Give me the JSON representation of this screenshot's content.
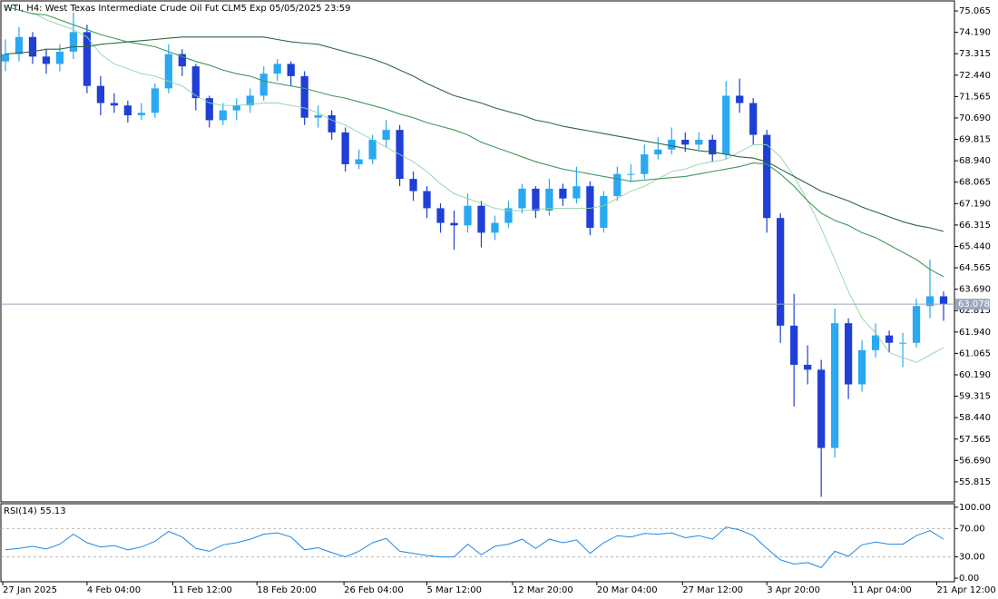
{
  "chart_data": [
    {
      "type": "candlestick",
      "title": "WTI, H4:  West Texas Intermediate Crude Oil Fut CLM5 Exp 05/05/2025 23:59",
      "current_price": 63.078,
      "up_color": "#2aa8f2",
      "down_color": "#1f3fd6",
      "price_line_color": "#9aa8be",
      "open": [
        73.0,
        73.3,
        74.0,
        73.2,
        72.9,
        73.4,
        74.2,
        72.0,
        71.3,
        71.2,
        70.8,
        70.9,
        71.9,
        73.3,
        72.8,
        71.5,
        70.6,
        71.0,
        71.2,
        71.6,
        72.5,
        72.9,
        72.4,
        70.7,
        70.8,
        70.1,
        68.8,
        69.0,
        69.8,
        70.2,
        68.2,
        67.7,
        67.0,
        66.4,
        66.3,
        67.1,
        66.0,
        66.4,
        67.0,
        67.8,
        66.9,
        67.8,
        67.4,
        67.9,
        66.2,
        67.5,
        68.4,
        68.4,
        69.2,
        69.4,
        69.8,
        69.6,
        69.8,
        69.2,
        71.6,
        71.3,
        70.0,
        66.6,
        62.2,
        60.6,
        60.4,
        57.2,
        62.3,
        59.8,
        61.2,
        61.8,
        61.5,
        61.5,
        63.0,
        63.4
      ],
      "high": [
        73.9,
        74.4,
        74.2,
        73.5,
        73.7,
        75.0,
        74.5,
        72.4,
        71.7,
        71.4,
        71.3,
        72.1,
        73.7,
        73.5,
        72.9,
        71.6,
        71.3,
        71.5,
        71.9,
        72.8,
        73.1,
        73.0,
        72.6,
        71.2,
        71.0,
        70.3,
        69.4,
        70.0,
        70.6,
        70.4,
        68.5,
        67.9,
        67.2,
        66.9,
        67.6,
        67.3,
        66.7,
        67.3,
        68.0,
        67.9,
        68.2,
        68.0,
        68.7,
        68.1,
        67.7,
        68.7,
        68.8,
        69.6,
        69.9,
        70.3,
        70.1,
        70.1,
        70.0,
        72.2,
        72.3,
        71.5,
        70.2,
        66.8,
        63.5,
        61.4,
        60.8,
        62.9,
        62.5,
        61.6,
        62.3,
        62.0,
        61.9,
        63.3,
        64.9,
        63.6
      ],
      "low": [
        72.6,
        73.0,
        72.9,
        72.5,
        72.6,
        73.1,
        71.7,
        70.8,
        70.9,
        70.5,
        70.6,
        70.7,
        71.7,
        72.4,
        71.0,
        70.3,
        70.4,
        70.6,
        70.9,
        71.4,
        72.2,
        72.0,
        70.4,
        70.3,
        69.8,
        68.5,
        68.6,
        68.8,
        69.5,
        67.9,
        67.3,
        66.6,
        66.0,
        65.3,
        66.0,
        65.4,
        65.7,
        66.2,
        66.8,
        66.6,
        66.7,
        67.1,
        67.2,
        65.9,
        66.0,
        67.3,
        68.1,
        68.2,
        69.0,
        69.2,
        69.3,
        69.4,
        68.9,
        69.0,
        70.9,
        69.6,
        66.0,
        61.5,
        58.9,
        59.8,
        55.2,
        56.8,
        59.2,
        59.5,
        60.9,
        61.1,
        60.5,
        61.3,
        62.5,
        62.4
      ],
      "close": [
        73.3,
        74.0,
        73.2,
        72.9,
        73.4,
        74.2,
        72.0,
        71.3,
        71.2,
        70.8,
        70.9,
        71.9,
        73.3,
        72.8,
        71.5,
        70.6,
        71.0,
        71.2,
        71.6,
        72.5,
        72.9,
        72.4,
        70.7,
        70.8,
        70.1,
        68.8,
        69.0,
        69.8,
        70.2,
        68.2,
        67.7,
        67.0,
        66.4,
        66.3,
        67.1,
        66.0,
        66.4,
        67.0,
        67.8,
        66.9,
        67.8,
        67.4,
        67.9,
        66.2,
        67.5,
        68.4,
        68.4,
        69.2,
        69.4,
        69.8,
        69.6,
        69.8,
        69.2,
        71.6,
        71.3,
        70.0,
        66.6,
        62.2,
        60.6,
        60.4,
        57.2,
        62.3,
        59.8,
        61.2,
        61.8,
        61.5,
        61.5,
        63.0,
        63.4,
        63.078
      ],
      "series": [
        {
          "color": "#8fd4a8",
          "values": [
            null,
            null,
            75.0,
            74.7,
            74.5,
            74.3,
            74.0,
            73.3,
            72.9,
            72.7,
            72.5,
            72.4,
            72.2,
            72.0,
            71.6,
            71.3,
            71.2,
            71.2,
            71.25,
            71.3,
            71.3,
            71.2,
            71.1,
            70.9,
            70.6,
            70.4,
            70.1,
            69.8,
            69.5,
            69.2,
            68.9,
            68.5,
            68.0,
            67.6,
            67.4,
            67.2,
            67.0,
            66.9,
            66.9,
            66.95,
            67.0,
            67.0,
            67.0,
            67.0,
            67.1,
            67.4,
            67.7,
            67.9,
            68.2,
            68.5,
            68.6,
            68.8,
            68.9,
            69.0,
            69.3,
            69.6,
            69.6,
            69.1,
            68.3,
            67.3,
            66.2,
            64.9,
            63.6,
            62.5,
            61.9,
            61.1,
            60.9,
            60.7,
            61.0,
            61.3
          ]
        },
        {
          "color": "#3f9a5e",
          "values": [
            75.25,
            75.1,
            74.95,
            74.9,
            74.7,
            74.5,
            74.3,
            74.1,
            73.95,
            73.8,
            73.7,
            73.6,
            73.4,
            73.2,
            73.0,
            72.85,
            72.65,
            72.5,
            72.4,
            72.2,
            72.1,
            72.0,
            71.9,
            71.75,
            71.6,
            71.5,
            71.35,
            71.2,
            71.05,
            70.85,
            70.7,
            70.5,
            70.35,
            70.2,
            70.0,
            69.7,
            69.5,
            69.3,
            69.1,
            68.9,
            68.75,
            68.6,
            68.5,
            68.4,
            68.3,
            68.2,
            68.1,
            68.15,
            68.2,
            68.25,
            68.3,
            68.4,
            68.5,
            68.6,
            68.7,
            68.85,
            68.8,
            68.4,
            67.9,
            67.3,
            66.8,
            66.5,
            66.3,
            66.0,
            65.8,
            65.5,
            65.2,
            64.9,
            64.5,
            64.2
          ]
        },
        {
          "color": "#2e6644",
          "values": [
            73.3,
            73.35,
            73.4,
            73.5,
            73.5,
            73.6,
            73.6,
            73.7,
            73.75,
            73.8,
            73.85,
            73.9,
            73.95,
            74.0,
            74.0,
            74.0,
            74.0,
            74.0,
            74.0,
            74.0,
            73.9,
            73.8,
            73.75,
            73.7,
            73.55,
            73.4,
            73.25,
            73.1,
            72.9,
            72.65,
            72.4,
            72.1,
            71.85,
            71.6,
            71.45,
            71.3,
            71.1,
            70.95,
            70.8,
            70.6,
            70.5,
            70.35,
            70.25,
            70.15,
            70.05,
            69.95,
            69.85,
            69.75,
            69.65,
            69.55,
            69.45,
            69.35,
            69.3,
            69.2,
            69.1,
            69.05,
            68.9,
            68.6,
            68.3,
            68.0,
            67.7,
            67.5,
            67.3,
            67.05,
            66.85,
            66.65,
            66.45,
            66.3,
            66.2,
            66.05
          ]
        }
      ],
      "xlim": [
        -0.333,
        69.8
      ],
      "xticks": [
        {
          "value": -0.2,
          "label": "27 Jan 2025"
        },
        {
          "value": 6,
          "label": "4 Feb 04:00"
        },
        {
          "value": 12.3,
          "label": "11 Feb 12:00"
        },
        {
          "value": 18.5,
          "label": "18 Feb 20:00"
        },
        {
          "value": 24.9,
          "label": "26 Feb 04:00"
        },
        {
          "value": 31,
          "label": "5 Mar 12:00"
        },
        {
          "value": 37.3,
          "label": "12 Mar 20:00"
        },
        {
          "value": 43.5,
          "label": "20 Mar 04:00"
        },
        {
          "value": 49.8,
          "label": "27 Mar 12:00"
        },
        {
          "value": 56,
          "label": "3 Apr 20:00"
        },
        {
          "value": 62.3,
          "label": "11 Apr 04:00"
        },
        {
          "value": 68.5,
          "label": "21 Apr 12:00"
        }
      ],
      "ylim": [
        54.996,
        75.475
      ],
      "yticks": [
        75.065,
        {
          "value": 74.19,
          "label": "74.190"
        },
        73.315,
        {
          "value": 72.44,
          "label": "72.440"
        },
        71.565,
        {
          "value": 70.69,
          "label": "70.690"
        },
        69.815,
        {
          "value": 68.94,
          "label": "68.940"
        },
        68.065,
        {
          "value": 67.19,
          "label": "67.190"
        },
        66.315,
        {
          "value": 65.44,
          "label": "65.440"
        },
        64.565,
        {
          "value": 63.69,
          "label": "63.690"
        },
        62.815,
        {
          "value": 61.94,
          "label": "61.940"
        },
        61.065,
        {
          "value": 60.19,
          "label": "60.190"
        },
        59.315,
        {
          "value": 58.44,
          "label": "58.440"
        },
        57.565,
        {
          "value": 56.69,
          "label": "56.690"
        },
        55.815
      ]
    },
    {
      "type": "line",
      "title": "RSI(14)",
      "color": "#1e88e5",
      "values": [
        40,
        42,
        45,
        41,
        48,
        62,
        50,
        44,
        46,
        40,
        44,
        52,
        66,
        58,
        42,
        38,
        47,
        50,
        55,
        62,
        64,
        58,
        40,
        43,
        36,
        30,
        38,
        50,
        56,
        38,
        35,
        32,
        30,
        30,
        48,
        33,
        45,
        48,
        55,
        42,
        55,
        50,
        54,
        35,
        50,
        60,
        58,
        63,
        62,
        64,
        57,
        60,
        55,
        72,
        68,
        60,
        42,
        26,
        20,
        22,
        15,
        38,
        31,
        47,
        51,
        48,
        48,
        60,
        67,
        55.13
      ],
      "levels": [
        70,
        30
      ],
      "ylim": [
        -5,
        105
      ],
      "yticks": [
        {
          "value": 100,
          "label": "100.00"
        },
        {
          "value": 70,
          "label": "70.00"
        },
        {
          "value": 30,
          "label": "30.00"
        },
        {
          "value": 0,
          "label": "0.00"
        }
      ]
    }
  ]
}
